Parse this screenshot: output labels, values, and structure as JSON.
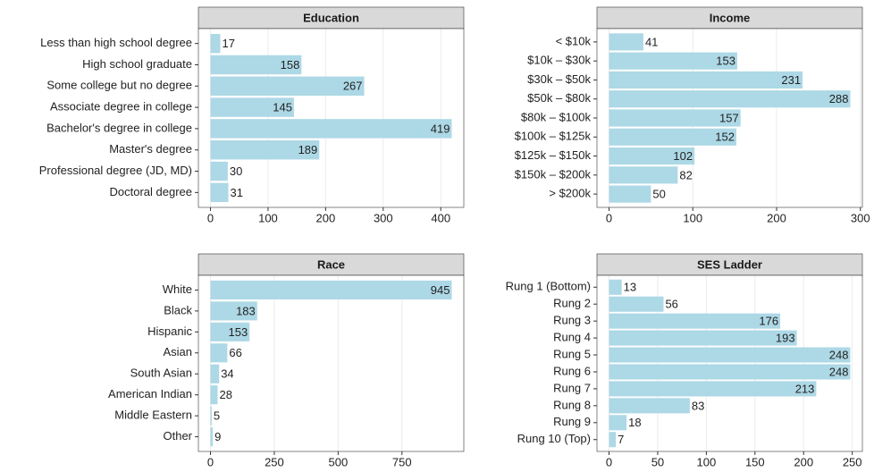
{
  "chart_data": [
    {
      "type": "bar",
      "orientation": "horizontal",
      "title": "Education",
      "categories": [
        "Less than high school degree",
        "High school graduate",
        "Some college but no degree",
        "Associate degree in college",
        "Bachelor's degree in college",
        "Master's degree",
        "Professional degree (JD, MD)",
        "Doctoral degree"
      ],
      "values": [
        17,
        158,
        267,
        145,
        419,
        189,
        30,
        31
      ],
      "color": "#add8e6",
      "xlim": [
        -21,
        440
      ],
      "xticks": [
        0,
        100,
        200,
        300,
        400
      ],
      "grid": true
    },
    {
      "type": "bar",
      "orientation": "horizontal",
      "title": "Income",
      "categories": [
        "< $10k",
        "$10k – $30k",
        "$30k – $50k",
        "$50k – $80k",
        "$80k – $100k",
        "$100k – $125k",
        "$125k – $150k",
        "$150k – $200k",
        "> $200k"
      ],
      "values": [
        41,
        153,
        231,
        288,
        157,
        152,
        102,
        82,
        50
      ],
      "color": "#add8e6",
      "xlim": [
        -14.4,
        302.4
      ],
      "xticks": [
        0,
        100,
        200,
        300
      ],
      "grid": true
    },
    {
      "type": "bar",
      "orientation": "horizontal",
      "title": "Race",
      "categories": [
        "White",
        "Black",
        "Hispanic",
        "Asian",
        "South Asian",
        "American Indian",
        "Middle Eastern",
        "Other"
      ],
      "values": [
        945,
        183,
        153,
        66,
        34,
        28,
        5,
        9
      ],
      "color": "#add8e6",
      "xlim": [
        -47.25,
        992.25
      ],
      "xticks": [
        0,
        250,
        500,
        750
      ],
      "grid": true
    },
    {
      "type": "bar",
      "orientation": "horizontal",
      "title": "SES Ladder",
      "categories": [
        "Rung 1 (Bottom)",
        "Rung 2",
        "Rung 3",
        "Rung 4",
        "Rung 5",
        "Rung 6",
        "Rung 7",
        "Rung 8",
        "Rung 9",
        "Rung 10 (Top)"
      ],
      "values": [
        13,
        56,
        176,
        193,
        248,
        248,
        213,
        83,
        18,
        7
      ],
      "color": "#add8e6",
      "xlim": [
        -12.4,
        260.4
      ],
      "xticks": [
        0,
        50,
        100,
        150,
        200,
        250
      ],
      "grid": true
    }
  ]
}
